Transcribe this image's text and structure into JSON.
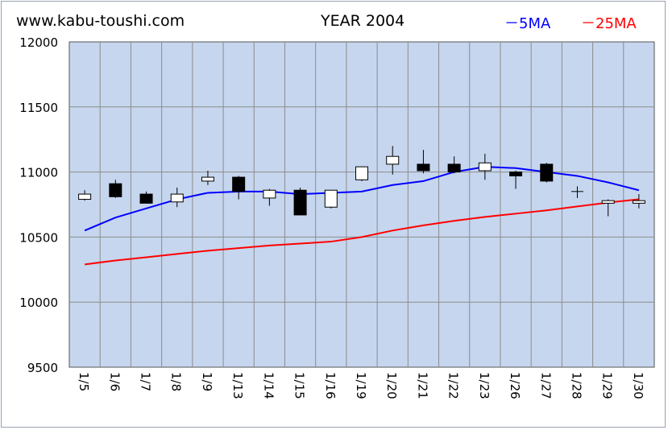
{
  "header": {
    "site": "www.kabu-toushi.com",
    "title": "YEAR 2004",
    "legend_5ma": "－5MA",
    "legend_25ma": "－25MA"
  },
  "colors": {
    "plot_bg": "#c6d6ee",
    "grid": "#8c8c8c",
    "ma5": "#0000ff",
    "ma25": "#ff0000",
    "up": "#ffffff",
    "down": "#000000"
  },
  "chart_data": {
    "type": "candlestick",
    "title": "YEAR 2004",
    "ylim": [
      9500,
      12000
    ],
    "yticks": [
      9500,
      10000,
      10500,
      11000,
      11500,
      12000
    ],
    "grid": true,
    "legend_position": "top-right",
    "categories": [
      "1/5",
      "1/6",
      "1/7",
      "1/8",
      "1/9",
      "1/13",
      "1/14",
      "1/15",
      "1/16",
      "1/19",
      "1/20",
      "1/21",
      "1/22",
      "1/23",
      "1/26",
      "1/27",
      "1/28",
      "1/29",
      "1/30"
    ],
    "ohlc": [
      {
        "open": 10790,
        "high": 10860,
        "low": 10780,
        "close": 10830
      },
      {
        "open": 10910,
        "high": 10940,
        "low": 10800,
        "close": 10810
      },
      {
        "open": 10830,
        "high": 10850,
        "low": 10760,
        "close": 10760
      },
      {
        "open": 10770,
        "high": 10880,
        "low": 10730,
        "close": 10830
      },
      {
        "open": 10930,
        "high": 11010,
        "low": 10900,
        "close": 10960
      },
      {
        "open": 10960,
        "high": 10970,
        "low": 10790,
        "close": 10850
      },
      {
        "open": 10800,
        "high": 10870,
        "low": 10740,
        "close": 10860
      },
      {
        "open": 10860,
        "high": 10880,
        "low": 10670,
        "close": 10670
      },
      {
        "open": 10730,
        "high": 10860,
        "low": 10720,
        "close": 10860
      },
      {
        "open": 10940,
        "high": 11040,
        "low": 10930,
        "close": 11040
      },
      {
        "open": 11060,
        "high": 11200,
        "low": 10980,
        "close": 11120
      },
      {
        "open": 11060,
        "high": 11170,
        "low": 10990,
        "close": 11010
      },
      {
        "open": 11060,
        "high": 11120,
        "low": 10990,
        "close": 11000
      },
      {
        "open": 11010,
        "high": 11140,
        "low": 10940,
        "close": 11070
      },
      {
        "open": 11000,
        "high": 11010,
        "low": 10870,
        "close": 10970
      },
      {
        "open": 11060,
        "high": 11070,
        "low": 10920,
        "close": 10930
      },
      {
        "open": 10850,
        "high": 10890,
        "low": 10800,
        "close": 10850
      },
      {
        "open": 10760,
        "high": 10790,
        "low": 10660,
        "close": 10780
      },
      {
        "open": 10760,
        "high": 10830,
        "low": 10720,
        "close": 10780
      }
    ],
    "series": [
      {
        "name": "5MA",
        "color": "#0000ff",
        "values": [
          10550,
          10650,
          10720,
          10790,
          10840,
          10850,
          10850,
          10830,
          10840,
          10850,
          10900,
          10930,
          11000,
          11040,
          11030,
          11000,
          10970,
          10920,
          10860
        ]
      },
      {
        "name": "25MA",
        "color": "#ff0000",
        "values": [
          10290,
          10320,
          10345,
          10370,
          10395,
          10415,
          10435,
          10450,
          10465,
          10500,
          10550,
          10590,
          10625,
          10655,
          10680,
          10705,
          10735,
          10765,
          10790
        ]
      }
    ]
  }
}
